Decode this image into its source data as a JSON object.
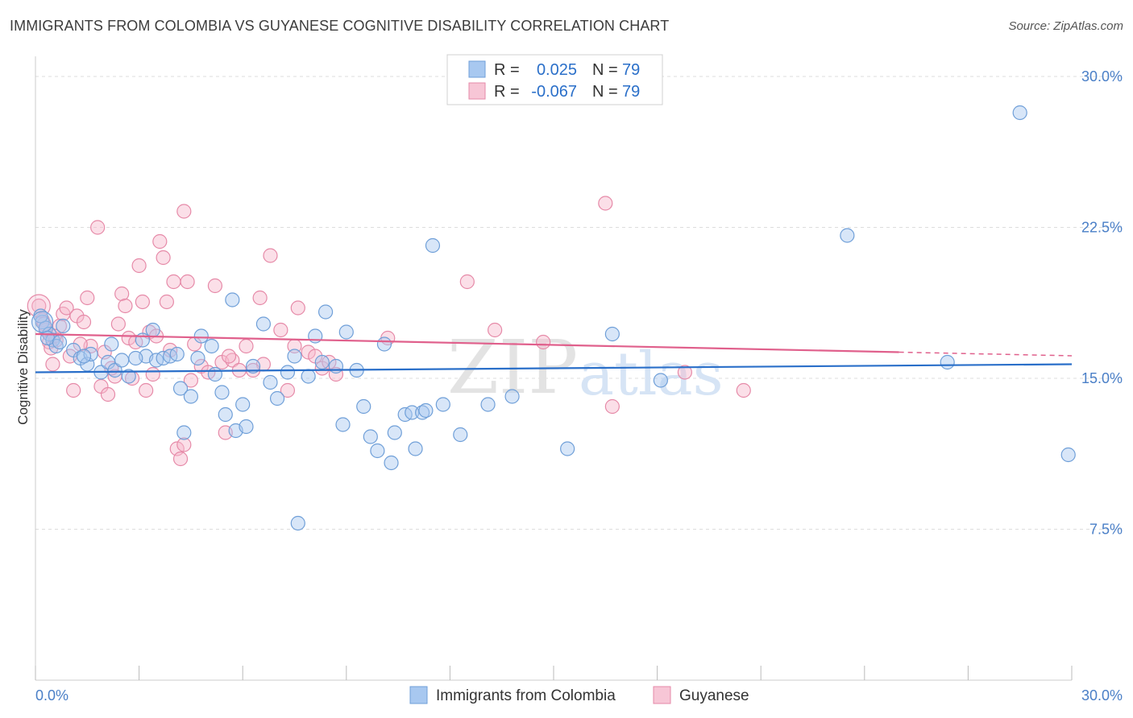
{
  "title": "IMMIGRANTS FROM COLOMBIA VS GUYANESE COGNITIVE DISABILITY CORRELATION CHART",
  "source": "Source: ZipAtlas.com",
  "watermark": {
    "zip": "ZIP",
    "atlas": "atlas"
  },
  "colors": {
    "blue_fill": "#a8c8f0",
    "blue_stroke": "#6f9fd8",
    "blue_line": "#2a6fc9",
    "pink_fill": "#f7b8cd",
    "pink_stroke": "#e68aa8",
    "pink_line": "#e0608c",
    "grid": "#dddddd",
    "tick_text": "#4a7fc7"
  },
  "chart_data": {
    "type": "scatter",
    "xlabel": "",
    "ylabel": "Cognitive Disability",
    "xlim": [
      0,
      30
    ],
    "ylim": [
      0,
      31
    ],
    "x_tick_labels": [
      "0.0%",
      "30.0%"
    ],
    "y_ticks": [
      7.5,
      15.0,
      22.5,
      30.0
    ],
    "y_tick_labels": [
      "7.5%",
      "15.0%",
      "22.5%",
      "30.0%"
    ],
    "grid": true,
    "legend_stats": [
      {
        "r_label": "R =",
        "r_value": "0.025",
        "n_label": "N =",
        "n_value": "79"
      },
      {
        "r_label": "R =",
        "r_value": "-0.067",
        "n_label": "N =",
        "n_value": "79"
      }
    ],
    "series": [
      {
        "name": "Immigrants from Colombia",
        "trend": {
          "x": [
            0,
            30
          ],
          "y": [
            15.3,
            15.7
          ]
        },
        "points": [
          [
            0.2,
            17.8
          ],
          [
            0.3,
            17.5
          ],
          [
            0.4,
            17.2
          ],
          [
            0.5,
            16.9
          ],
          [
            0.6,
            16.6
          ],
          [
            0.8,
            17.6
          ],
          [
            1.1,
            16.4
          ],
          [
            1.3,
            16.0
          ],
          [
            1.5,
            15.7
          ],
          [
            1.6,
            16.2
          ],
          [
            1.9,
            15.3
          ],
          [
            2.1,
            15.8
          ],
          [
            2.2,
            16.7
          ],
          [
            2.3,
            15.4
          ],
          [
            2.5,
            15.9
          ],
          [
            2.7,
            15.1
          ],
          [
            3.1,
            16.9
          ],
          [
            3.2,
            16.1
          ],
          [
            3.4,
            17.4
          ],
          [
            3.5,
            15.9
          ],
          [
            3.7,
            16.0
          ],
          [
            3.9,
            16.1
          ],
          [
            4.1,
            16.2
          ],
          [
            4.2,
            14.5
          ],
          [
            4.3,
            12.3
          ],
          [
            4.5,
            14.1
          ],
          [
            4.7,
            16.0
          ],
          [
            4.8,
            17.1
          ],
          [
            5.1,
            16.6
          ],
          [
            5.2,
            15.2
          ],
          [
            5.4,
            14.3
          ],
          [
            5.5,
            13.2
          ],
          [
            5.7,
            18.9
          ],
          [
            5.8,
            12.4
          ],
          [
            6.0,
            13.7
          ],
          [
            6.1,
            12.6
          ],
          [
            6.3,
            15.6
          ],
          [
            6.6,
            17.7
          ],
          [
            6.8,
            14.8
          ],
          [
            7.0,
            14.0
          ],
          [
            7.3,
            15.3
          ],
          [
            7.5,
            16.1
          ],
          [
            7.6,
            7.8
          ],
          [
            7.9,
            15.1
          ],
          [
            8.1,
            17.1
          ],
          [
            8.3,
            15.8
          ],
          [
            8.4,
            18.3
          ],
          [
            8.7,
            15.6
          ],
          [
            8.9,
            12.7
          ],
          [
            9.0,
            17.3
          ],
          [
            9.3,
            15.4
          ],
          [
            9.5,
            13.6
          ],
          [
            9.7,
            12.1
          ],
          [
            9.9,
            11.4
          ],
          [
            10.1,
            16.7
          ],
          [
            10.3,
            10.8
          ],
          [
            10.4,
            12.3
          ],
          [
            10.7,
            13.2
          ],
          [
            10.9,
            13.3
          ],
          [
            11.0,
            11.5
          ],
          [
            11.2,
            13.3
          ],
          [
            11.3,
            13.4
          ],
          [
            11.5,
            21.6
          ],
          [
            11.8,
            13.7
          ],
          [
            12.3,
            12.2
          ],
          [
            13.1,
            13.7
          ],
          [
            13.8,
            14.1
          ],
          [
            15.4,
            11.5
          ],
          [
            16.7,
            17.2
          ],
          [
            18.1,
            14.9
          ],
          [
            23.5,
            22.1
          ],
          [
            26.4,
            15.8
          ],
          [
            28.5,
            28.2
          ],
          [
            29.9,
            11.2
          ],
          [
            0.15,
            18.1
          ],
          [
            0.35,
            17.0
          ],
          [
            0.7,
            16.8
          ],
          [
            1.4,
            16.1
          ],
          [
            2.9,
            16.0
          ]
        ]
      },
      {
        "name": "Guyanese",
        "trend": {
          "x": [
            0,
            25.0
          ],
          "y": [
            17.2,
            16.3
          ]
        },
        "points": [
          [
            0.1,
            18.6
          ],
          [
            0.2,
            17.9
          ],
          [
            0.3,
            17.4
          ],
          [
            0.4,
            16.8
          ],
          [
            0.5,
            15.7
          ],
          [
            0.6,
            16.9
          ],
          [
            0.7,
            17.6
          ],
          [
            0.8,
            18.2
          ],
          [
            0.9,
            18.5
          ],
          [
            1.0,
            16.1
          ],
          [
            1.1,
            14.4
          ],
          [
            1.2,
            18.1
          ],
          [
            1.4,
            17.8
          ],
          [
            1.5,
            19.0
          ],
          [
            1.6,
            16.6
          ],
          [
            1.8,
            22.5
          ],
          [
            1.9,
            14.6
          ],
          [
            2.0,
            16.3
          ],
          [
            2.1,
            14.2
          ],
          [
            2.3,
            15.1
          ],
          [
            2.4,
            17.7
          ],
          [
            2.5,
            19.2
          ],
          [
            2.6,
            18.6
          ],
          [
            2.7,
            17.0
          ],
          [
            2.8,
            15.0
          ],
          [
            2.9,
            16.8
          ],
          [
            3.0,
            20.6
          ],
          [
            3.1,
            18.8
          ],
          [
            3.2,
            14.4
          ],
          [
            3.3,
            17.3
          ],
          [
            3.4,
            15.2
          ],
          [
            3.6,
            21.8
          ],
          [
            3.7,
            21.0
          ],
          [
            3.8,
            18.8
          ],
          [
            3.9,
            16.4
          ],
          [
            4.0,
            19.8
          ],
          [
            4.1,
            11.5
          ],
          [
            4.2,
            11.0
          ],
          [
            4.3,
            23.3
          ],
          [
            4.4,
            19.8
          ],
          [
            4.5,
            14.9
          ],
          [
            4.6,
            16.7
          ],
          [
            4.8,
            15.6
          ],
          [
            5.0,
            15.3
          ],
          [
            5.2,
            19.6
          ],
          [
            5.4,
            15.8
          ],
          [
            5.5,
            12.3
          ],
          [
            5.7,
            15.9
          ],
          [
            5.9,
            15.4
          ],
          [
            6.1,
            16.6
          ],
          [
            6.5,
            19.0
          ],
          [
            6.6,
            15.7
          ],
          [
            6.8,
            21.1
          ],
          [
            7.1,
            17.4
          ],
          [
            7.3,
            14.4
          ],
          [
            7.6,
            18.5
          ],
          [
            7.9,
            16.3
          ],
          [
            8.1,
            16.1
          ],
          [
            8.3,
            15.5
          ],
          [
            8.5,
            15.8
          ],
          [
            10.2,
            17.0
          ],
          [
            12.5,
            19.8
          ],
          [
            13.3,
            17.4
          ],
          [
            14.7,
            16.8
          ],
          [
            16.5,
            23.7
          ],
          [
            16.7,
            13.6
          ],
          [
            18.8,
            15.3
          ],
          [
            20.5,
            14.4
          ],
          [
            0.25,
            17.7
          ],
          [
            0.45,
            16.5
          ],
          [
            0.55,
            17.1
          ],
          [
            1.3,
            16.7
          ],
          [
            2.2,
            15.5
          ],
          [
            3.5,
            17.1
          ],
          [
            4.3,
            11.7
          ],
          [
            5.6,
            16.1
          ],
          [
            6.3,
            15.4
          ],
          [
            7.5,
            16.6
          ],
          [
            8.7,
            15.2
          ]
        ]
      }
    ]
  }
}
